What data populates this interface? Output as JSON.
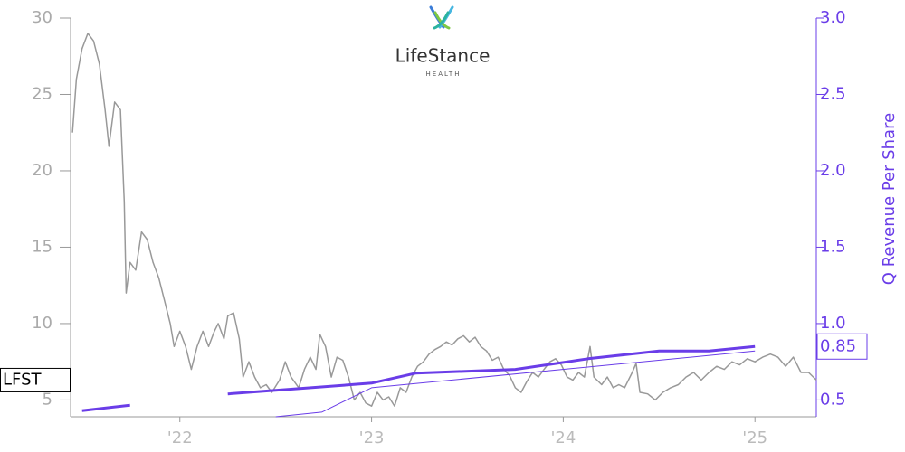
{
  "chart_data": {
    "type": "line",
    "logo": {
      "name": "LifeStance",
      "tagline": "HEALTH"
    },
    "y2_label": "Q Revenue Per Share",
    "xlim": [
      2021.43,
      2025.32
    ],
    "xticks": [
      {
        "value": 2022,
        "label": "'22"
      },
      {
        "value": 2023,
        "label": "'23"
      },
      {
        "value": 2024,
        "label": "'24"
      },
      {
        "value": 2025,
        "label": "'25"
      }
    ],
    "ylim": [
      3.9,
      30
    ],
    "yticks": [
      5,
      10,
      15,
      20,
      25,
      30
    ],
    "y2lim": [
      0.39,
      3.0
    ],
    "y2ticks": [
      0.5,
      {
        "value": 1.0,
        "label": "1.0"
      },
      1.5,
      {
        "value": 2.0,
        "label": "2.0"
      },
      2.5,
      {
        "value": 3.0,
        "label": "3.0"
      }
    ],
    "price_marker": {
      "value": 6.3,
      "label": "LFST"
    },
    "y2_marker": {
      "value": 0.85,
      "label": "0.85"
    },
    "series": [
      {
        "color": "#999999",
        "axis": "y",
        "width": 1.5,
        "x": [
          2021.44,
          2021.46,
          2021.49,
          2021.52,
          2021.55,
          2021.58,
          2021.61,
          2021.63,
          2021.66,
          2021.69,
          2021.71,
          2021.72,
          2021.74,
          2021.77,
          2021.8,
          2021.83,
          2021.86,
          2021.89,
          2021.92,
          2021.95,
          2021.97,
          2022.0,
          2022.03,
          2022.06,
          2022.09,
          2022.12,
          2022.15,
          2022.18,
          2022.2,
          2022.23,
          2022.25,
          2022.28,
          2022.31,
          2022.33,
          2022.36,
          2022.39,
          2022.42,
          2022.45,
          2022.48,
          2022.52,
          2022.55,
          2022.58,
          2022.62,
          2022.65,
          2022.68,
          2022.71,
          2022.73,
          2022.76,
          2022.79,
          2022.82,
          2022.85,
          2022.88,
          2022.91,
          2022.94,
          2022.97,
          2023.0,
          2023.03,
          2023.06,
          2023.09,
          2023.12,
          2023.15,
          2023.18,
          2023.21,
          2023.24,
          2023.27,
          2023.3,
          2023.33,
          2023.36,
          2023.39,
          2023.42,
          2023.45,
          2023.48,
          2023.51,
          2023.54,
          2023.57,
          2023.6,
          2023.63,
          2023.66,
          2023.69,
          2023.72,
          2023.75,
          2023.78,
          2023.81,
          2023.84,
          2023.87,
          2023.9,
          2023.93,
          2023.96,
          2023.99,
          2024.02,
          2024.05,
          2024.08,
          2024.11,
          2024.14,
          2024.16,
          2024.2,
          2024.23,
          2024.26,
          2024.29,
          2024.32,
          2024.36,
          2024.38,
          2024.4,
          2024.44,
          2024.48,
          2024.52,
          2024.56,
          2024.6,
          2024.64,
          2024.68,
          2024.72,
          2024.76,
          2024.8,
          2024.84,
          2024.88,
          2024.92,
          2024.96,
          2025.0,
          2025.04,
          2025.08,
          2025.12,
          2025.16,
          2025.2,
          2025.24,
          2025.28,
          2025.32
        ],
        "values": [
          22.5,
          26,
          28,
          29,
          28.5,
          27,
          24,
          21.6,
          24.5,
          24,
          18,
          12,
          14,
          13.5,
          16,
          15.5,
          14,
          13,
          11.5,
          10,
          8.5,
          9.5,
          8.5,
          7.0,
          8.5,
          9.5,
          8.5,
          9.5,
          10,
          9.0,
          10.5,
          10.7,
          9.0,
          6.5,
          7.5,
          6.5,
          5.8,
          6.0,
          5.5,
          6.3,
          7.5,
          6.5,
          5.8,
          7.0,
          7.8,
          7.0,
          9.3,
          8.5,
          6.5,
          7.8,
          7.6,
          6.5,
          5.0,
          5.5,
          4.8,
          4.6,
          5.5,
          5.0,
          5.2,
          4.6,
          5.8,
          5.5,
          6.5,
          7.2,
          7.5,
          8.0,
          8.3,
          8.5,
          8.8,
          8.6,
          9.0,
          9.2,
          8.8,
          9.1,
          8.5,
          8.2,
          7.6,
          7.8,
          7.0,
          6.6,
          5.8,
          5.5,
          6.2,
          6.8,
          6.5,
          7.0,
          7.5,
          7.7,
          7.3,
          6.5,
          6.3,
          6.8,
          6.5,
          8.5,
          6.5,
          6.0,
          6.5,
          5.8,
          6.0,
          5.8,
          6.8,
          7.4,
          5.5,
          5.4,
          5.0,
          5.5,
          5.8,
          6.0,
          6.5,
          6.8,
          6.3,
          6.8,
          7.2,
          7.0,
          7.5,
          7.3,
          7.7,
          7.5,
          7.8,
          8.0,
          7.8,
          7.2,
          7.8,
          6.8,
          6.8,
          6.3
        ]
      },
      {
        "color": "#6a3de8",
        "axis": "y2",
        "width": 3,
        "x": [
          2021.49,
          2021.74,
          2021.9,
          2022.25,
          2023.0,
          2023.23,
          2023.75,
          2024.13,
          2024.5,
          2024.76,
          2025.0
        ],
        "values": [
          0.43,
          0.465,
          null,
          0.54,
          0.61,
          0.675,
          0.7,
          0.77,
          0.82,
          0.82,
          0.85
        ]
      },
      {
        "color": "#6a3de8",
        "axis": "y2",
        "width": 1,
        "x": [
          2022.5,
          2022.74,
          2023.0,
          2025.0
        ],
        "values": [
          0.39,
          0.42,
          0.58,
          0.82
        ]
      }
    ]
  }
}
